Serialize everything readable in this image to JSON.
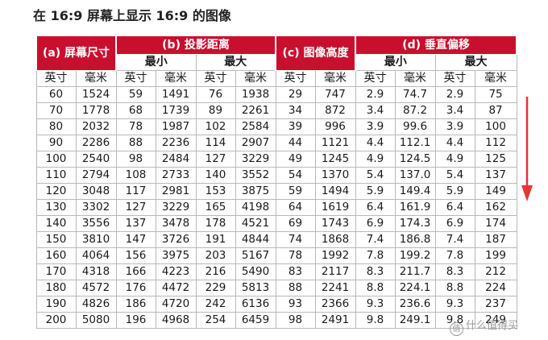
{
  "title": "在 16:9 屏幕上显示 16:9 的图像",
  "colors": {
    "header_bg": "#c8102e",
    "header_text": "#ffffff",
    "arrow": "#e53535"
  },
  "header": {
    "group_a": "(a) 屏幕尺寸",
    "group_b": "(b) 投影距离",
    "group_c": "(c) 图像高度",
    "group_d": "(d) 垂直偏移",
    "min": "最小",
    "max": "最大",
    "inch": "英寸",
    "mm": "毫米"
  },
  "rows": [
    [
      "60",
      "1524",
      "59",
      "1491",
      "76",
      "1938",
      "29",
      "747",
      "2.9",
      "74.7",
      "2.9",
      "75"
    ],
    [
      "70",
      "1778",
      "68",
      "1739",
      "89",
      "2261",
      "34",
      "872",
      "3.4",
      "87.2",
      "3.4",
      "87"
    ],
    [
      "80",
      "2032",
      "78",
      "1987",
      "102",
      "2584",
      "39",
      "996",
      "3.9",
      "99.6",
      "3.9",
      "100"
    ],
    [
      "90",
      "2286",
      "88",
      "2236",
      "114",
      "2907",
      "44",
      "1121",
      "4.4",
      "112.1",
      "4.4",
      "112"
    ],
    [
      "100",
      "2540",
      "98",
      "2484",
      "127",
      "3229",
      "49",
      "1245",
      "4.9",
      "124.5",
      "4.9",
      "125"
    ],
    [
      "110",
      "2794",
      "108",
      "2733",
      "140",
      "3552",
      "54",
      "1370",
      "5.4",
      "137.0",
      "5.4",
      "137"
    ],
    [
      "120",
      "3048",
      "117",
      "2981",
      "153",
      "3875",
      "59",
      "1494",
      "5.9",
      "149.4",
      "5.9",
      "149"
    ],
    [
      "130",
      "3302",
      "127",
      "3229",
      "165",
      "4198",
      "64",
      "1619",
      "6.4",
      "161.9",
      "6.4",
      "162"
    ],
    [
      "140",
      "3556",
      "137",
      "3478",
      "178",
      "4521",
      "69",
      "1743",
      "6.9",
      "174.3",
      "6.9",
      "174"
    ],
    [
      "150",
      "3810",
      "147",
      "3726",
      "191",
      "4844",
      "74",
      "1868",
      "7.4",
      "186.8",
      "7.4",
      "187"
    ],
    [
      "160",
      "4064",
      "156",
      "3975",
      "203",
      "5167",
      "78",
      "1992",
      "7.8",
      "199.2",
      "7.8",
      "199"
    ],
    [
      "170",
      "4318",
      "166",
      "4223",
      "216",
      "5490",
      "83",
      "2117",
      "8.3",
      "211.7",
      "8.3",
      "212"
    ],
    [
      "180",
      "4572",
      "176",
      "4472",
      "229",
      "5813",
      "88",
      "2241",
      "8.8",
      "224.1",
      "8.8",
      "224"
    ],
    [
      "190",
      "4826",
      "186",
      "4720",
      "242",
      "6136",
      "93",
      "2366",
      "9.3",
      "236.6",
      "9.3",
      "237"
    ],
    [
      "200",
      "5080",
      "196",
      "4968",
      "254",
      "6459",
      "98",
      "2491",
      "9.8",
      "249.1",
      "9.8",
      "249"
    ]
  ],
  "watermark": {
    "icon": "值",
    "text": "什么值得买"
  }
}
